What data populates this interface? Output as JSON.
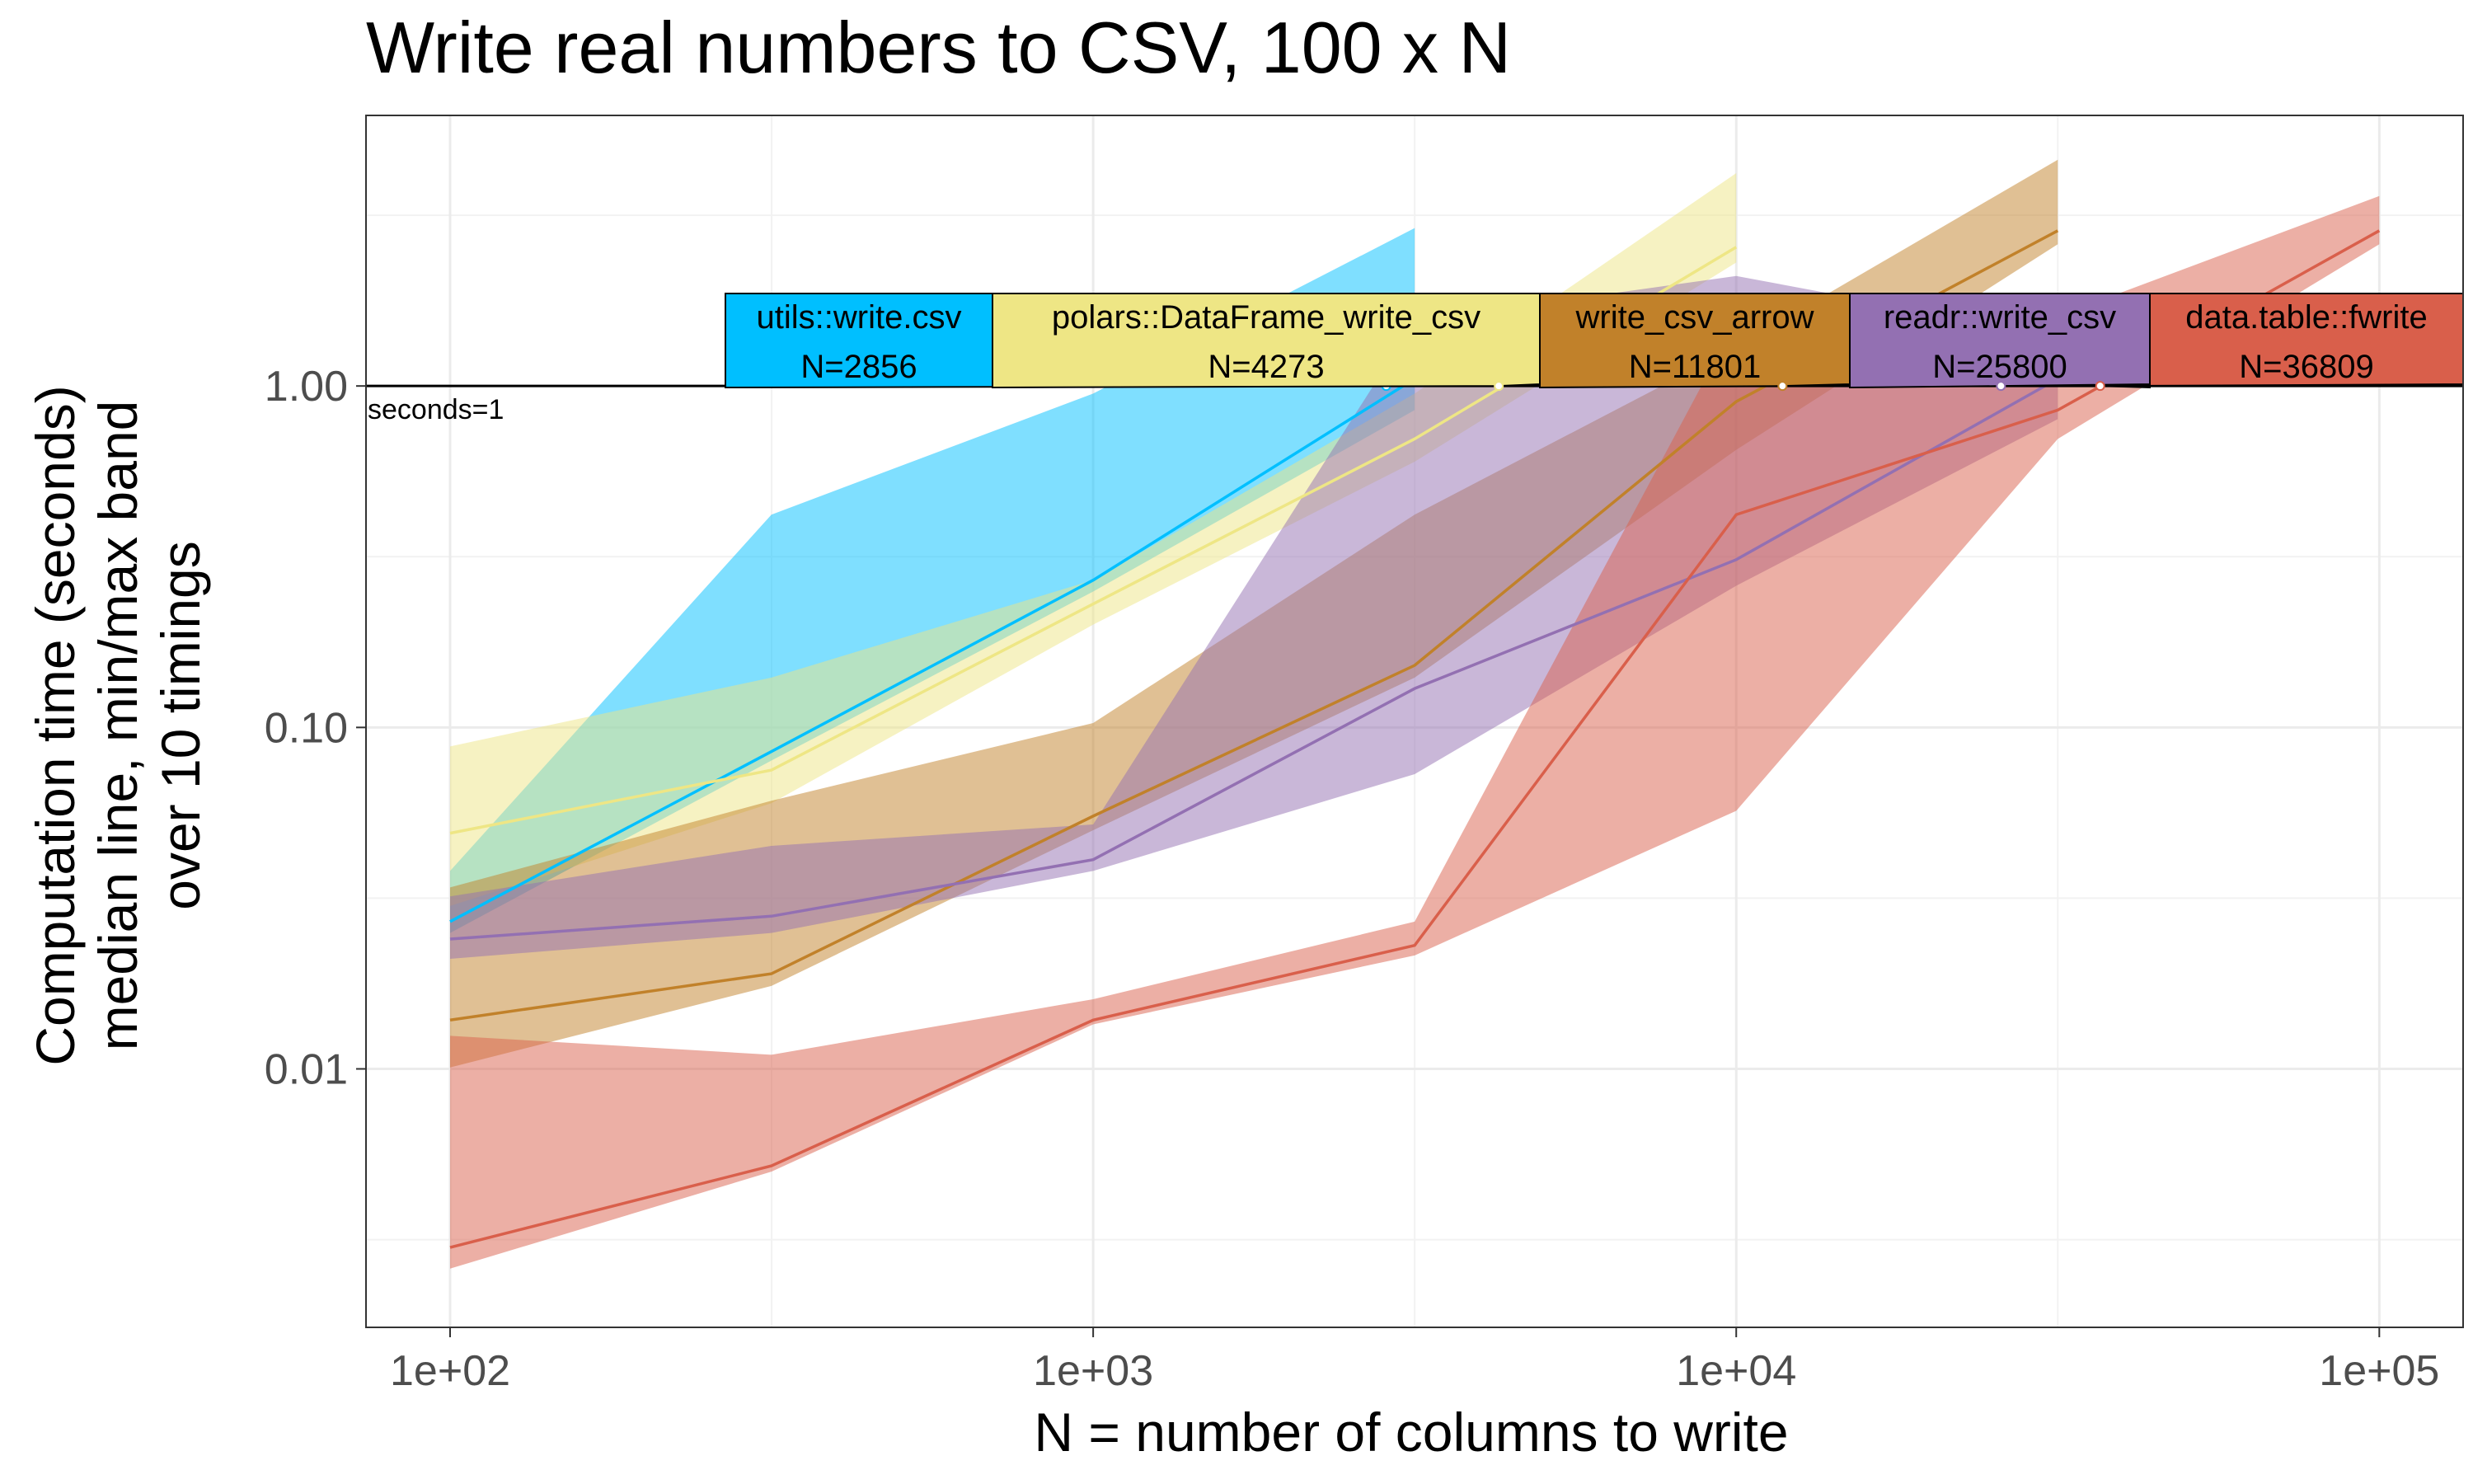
{
  "chart_data": {
    "type": "line",
    "title": "Write real numbers to CSV, 100 x N",
    "xlabel": "N = number of columns to write",
    "ylabel_lines": [
      "Computation time (seconds)",
      "median line, min/max band",
      "over 10 timings"
    ],
    "x_scale": "log",
    "y_scale": "log",
    "xlim": [
      74,
      135000
    ],
    "ylim": [
      0.00175,
      6.2
    ],
    "x_ticks": [
      {
        "value": 100,
        "label": "1e+02"
      },
      {
        "value": 1000,
        "label": "1e+03"
      },
      {
        "value": 10000,
        "label": "1e+04"
      },
      {
        "value": 100000,
        "label": "1e+05"
      }
    ],
    "y_ticks": [
      {
        "value": 0.01,
        "label": "0.01"
      },
      {
        "value": 0.1,
        "label": "0.10"
      },
      {
        "value": 1,
        "label": "1.00"
      }
    ],
    "grid": true,
    "reference_line": {
      "y": 1,
      "label": "seconds=1"
    },
    "series": [
      {
        "name": "utils::write.csv",
        "color": "#00BFFF",
        "x": [
          100,
          316,
          1000,
          3162
        ],
        "median": [
          0.027,
          0.085,
          0.27,
          1.05
        ],
        "min": [
          0.025,
          0.08,
          0.25,
          0.85
        ],
        "max": [
          0.038,
          0.42,
          0.95,
          2.9
        ],
        "label_N": "N=2856",
        "label_x": 2856
      },
      {
        "name": "polars::DataFrame_write_csv",
        "color": "#EEE685",
        "x": [
          100,
          316,
          1000,
          3162,
          10000
        ],
        "median": [
          0.049,
          0.075,
          0.23,
          0.7,
          2.55
        ],
        "min": [
          0.03,
          0.06,
          0.2,
          0.6,
          2.3
        ],
        "max": [
          0.088,
          0.14,
          0.27,
          0.95,
          4.2
        ],
        "label_N": "N=4273",
        "label_x": 4273
      },
      {
        "name": "write_csv_arrow",
        "color": "#C1812A",
        "x": [
          100,
          316,
          1000,
          3162,
          10000,
          31623
        ],
        "median": [
          0.0139,
          0.019,
          0.055,
          0.152,
          0.9,
          2.85
        ],
        "min": [
          0.0101,
          0.0175,
          0.05,
          0.14,
          0.65,
          2.6
        ],
        "max": [
          0.034,
          0.061,
          0.103,
          0.42,
          1.3,
          4.6
        ],
        "label_N": "N=11801",
        "label_x": 11801
      },
      {
        "name": "readr::write_csv",
        "color": "#9370B2",
        "x": [
          100,
          316,
          1000,
          3162,
          10000,
          31623
        ],
        "median": [
          0.024,
          0.028,
          0.041,
          0.13,
          0.31,
          1.05
        ],
        "min": [
          0.021,
          0.025,
          0.038,
          0.073,
          0.26,
          0.8
        ],
        "max": [
          0.032,
          0.045,
          0.052,
          1.55,
          2.1,
          1.4
        ],
        "label_N": "N=25800",
        "label_x": 25800
      },
      {
        "name": "data.table::fwrite",
        "color": "#D95F4B",
        "x": [
          100,
          316,
          1000,
          3162,
          10000,
          31623,
          100000
        ],
        "median": [
          0.003,
          0.0052,
          0.0139,
          0.023,
          0.42,
          0.85,
          2.85
        ],
        "min": [
          0.0026,
          0.005,
          0.0135,
          0.0215,
          0.057,
          0.7,
          2.6
        ],
        "max": [
          0.0125,
          0.011,
          0.016,
          0.027,
          1.55,
          1.6,
          3.6
        ],
        "label_N": "N=36809",
        "label_x": 36809
      }
    ]
  }
}
